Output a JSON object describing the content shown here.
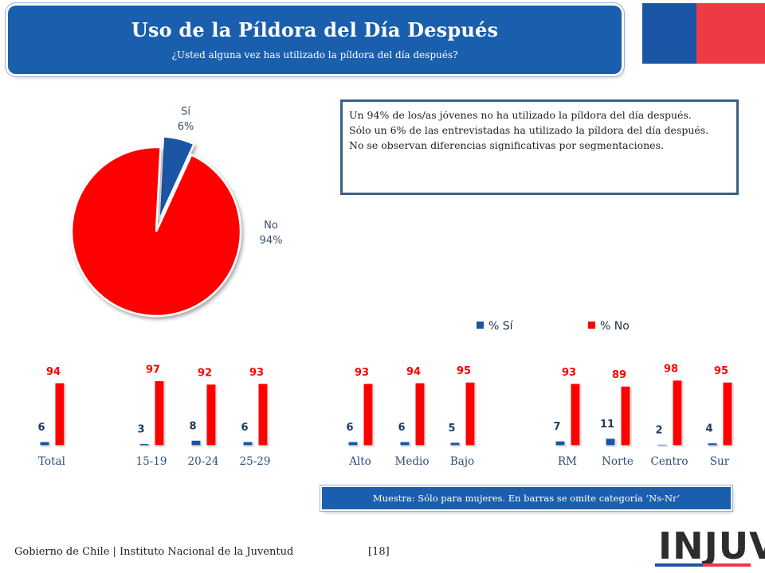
{
  "header": {
    "title": "Uso de la Píldora del Día Después",
    "subtitle": "¿Usted alguna vez has utilizado la píldora del día después?"
  },
  "summary": {
    "line1": "Un 94% de los/as jóvenes no ha utilizado la píldora del día después.",
    "line2": "Sólo un 6% de las entrevistadas ha utilizado la píldora del día después.",
    "line3": "No se observan diferencias significativas por segmentaciones."
  },
  "chart_data": [
    {
      "type": "pie",
      "labels": [
        "Sí",
        "No"
      ],
      "values": [
        6,
        94
      ],
      "display": [
        "6%",
        "94%"
      ],
      "colors": [
        "#1b55a5",
        "#ff0000"
      ]
    },
    {
      "type": "bar",
      "categories": [
        "Total",
        "15-19",
        "20-24",
        "25-29",
        "Alto",
        "Medio",
        "Bajo",
        "RM",
        "Norte",
        "Centro",
        "Sur"
      ],
      "series": [
        {
          "name": "% Sí",
          "values": [
            6,
            3,
            8,
            6,
            6,
            6,
            5,
            7,
            11,
            2,
            4
          ],
          "color": "#1b55a5"
        },
        {
          "name": "% No",
          "values": [
            94,
            97,
            92,
            93,
            93,
            94,
            95,
            93,
            89,
            98,
            95
          ],
          "color": "#ff0000"
        }
      ],
      "legend_position": "top"
    }
  ],
  "note": "Muestra: Sólo para mujeres. En barras se omite categoría ‘Ns-Nr’",
  "footer": {
    "org": "Gobierno de Chile | Instituto Nacional de la Juventud",
    "page": "[18]"
  },
  "logo": {
    "text": "INJUV"
  },
  "colors": {
    "brand_blue": "#1a5fae",
    "flag_blue": "#1a56a6",
    "flag_red": "#ee3a43"
  }
}
